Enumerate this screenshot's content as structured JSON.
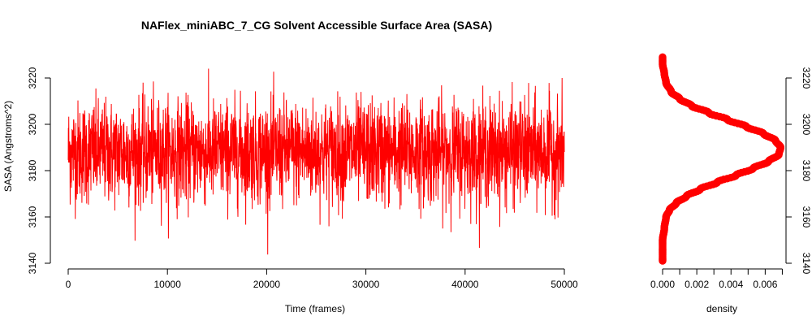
{
  "chart_data": [
    {
      "type": "line",
      "title": "NAFlex_miniABC_7_CG Solvent Accessible Surface Area (SASA)",
      "xlabel": "Time (frames)",
      "ylabel": "SASA (Angstroms^2)",
      "xlim": [
        0,
        50000
      ],
      "ylim": [
        3140,
        3220
      ],
      "x_ticks": [
        0,
        10000,
        20000,
        30000,
        40000,
        50000
      ],
      "y_ticks": [
        3140,
        3160,
        3180,
        3200,
        3220
      ],
      "color": "#FF0000",
      "series_summary": {
        "n_frames": 50000,
        "core_low": 3168,
        "core_high": 3215,
        "min_observed": 3142,
        "max_observed": 3229,
        "mean": 3188,
        "sd": 11
      }
    },
    {
      "type": "line",
      "xlabel": "density",
      "ylabel": "",
      "xlim": [
        0,
        0.007
      ],
      "ylim": [
        3140,
        3220
      ],
      "x_ticks": [
        0.0,
        0.002,
        0.004,
        0.006
      ],
      "x_tick_labels": [
        "0.000",
        "0.002",
        "0.004",
        "0.006"
      ],
      "y_ticks": [
        3140,
        3160,
        3180,
        3200,
        3220
      ],
      "color": "#FF0000",
      "density_curve": {
        "y": [
          3141,
          3150,
          3155,
          3160,
          3163,
          3166,
          3169,
          3172,
          3175,
          3178,
          3181,
          3184,
          3187,
          3190,
          3193,
          3196,
          3199,
          3202,
          3205,
          3208,
          3211,
          3214,
          3218,
          3222,
          3226,
          3229
        ],
        "density": [
          0.0,
          0.0,
          0.0001,
          0.0002,
          0.0004,
          0.0008,
          0.0014,
          0.0022,
          0.0032,
          0.0043,
          0.0053,
          0.0062,
          0.0068,
          0.0069,
          0.0066,
          0.0059,
          0.0049,
          0.0038,
          0.0027,
          0.0017,
          0.001,
          0.0005,
          0.0002,
          0.0001,
          0.0,
          0.0
        ]
      }
    }
  ]
}
